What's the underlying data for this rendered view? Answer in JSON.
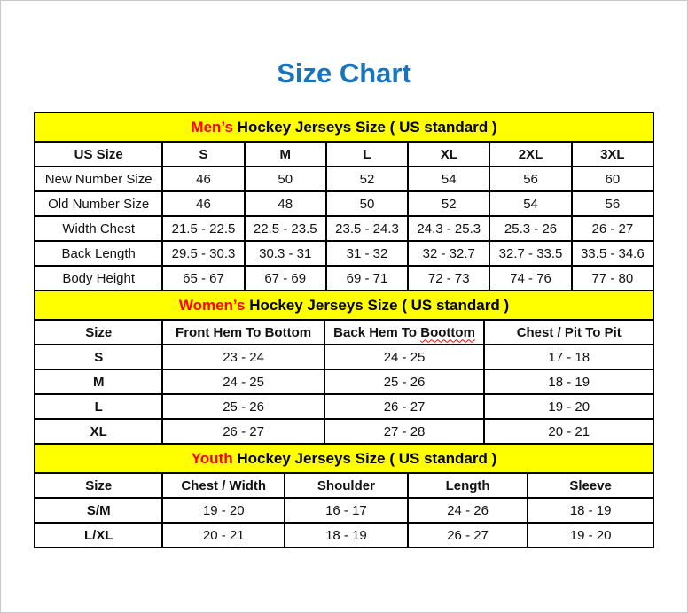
{
  "page": {
    "title": "Size Chart",
    "title_color": "#1874be",
    "band_color": "#ffff00",
    "highlight_color": "#ff0000"
  },
  "tables": [
    {
      "id": "mens",
      "header": {
        "highlight": "Men’s",
        "rest": " Hockey Jerseys Size ( US standard )"
      },
      "columns": [
        "US Size",
        "S",
        "M",
        "L",
        "XL",
        "2XL",
        "3XL"
      ],
      "rows": [
        {
          "label": "New Number Size",
          "values": [
            "46",
            "50",
            "52",
            "54",
            "56",
            "60"
          ]
        },
        {
          "label": "Old Number Size",
          "values": [
            "46",
            "48",
            "50",
            "52",
            "54",
            "56"
          ]
        },
        {
          "label": "Width Chest",
          "values": [
            "21.5 - 22.5",
            "22.5 - 23.5",
            "23.5 - 24.3",
            "24.3 - 25.3",
            "25.3 - 26",
            "26 - 27"
          ]
        },
        {
          "label": "Back Length",
          "values": [
            "29.5 - 30.3",
            "30.3 - 31",
            "31 - 32",
            "32 - 32.7",
            "32.7 - 33.5",
            "33.5 - 34.6"
          ]
        },
        {
          "label": "Body Height",
          "values": [
            "65 - 67",
            "67 - 69",
            "69 - 71",
            "72 - 73",
            "74 - 76",
            "77 - 80"
          ]
        }
      ]
    },
    {
      "id": "womens",
      "header": {
        "highlight": "Women’s",
        "rest": " Hockey Jerseys Size ( US standard )"
      },
      "columns": [
        "Size",
        "Front Hem To Bottom",
        {
          "prefix": "Back Hem To ",
          "misspelled": "Boottom"
        },
        "Chest / Pit To Pit"
      ],
      "rows": [
        {
          "label": "S",
          "values": [
            "23 - 24",
            "24 - 25",
            "17 - 18"
          ]
        },
        {
          "label": "M",
          "values": [
            "24 - 25",
            "25 - 26",
            "18 - 19"
          ]
        },
        {
          "label": "L",
          "values": [
            "25 - 26",
            "26 - 27",
            "19 - 20"
          ]
        },
        {
          "label": "XL",
          "values": [
            "26 - 27",
            "27 - 28",
            "20 - 21"
          ]
        }
      ]
    },
    {
      "id": "youth",
      "header": {
        "highlight": "Youth",
        "rest": " Hockey Jerseys Size ( US standard )"
      },
      "columns": [
        "Size",
        "Chest / Width",
        "Shoulder",
        "Length",
        "Sleeve"
      ],
      "rows": [
        {
          "label": "S/M",
          "values": [
            "19 - 20",
            "16 - 17",
            "24 - 26",
            "18 - 19"
          ]
        },
        {
          "label": "L/XL",
          "values": [
            "20 - 21",
            "18 - 19",
            "26 - 27",
            "19 - 20"
          ]
        }
      ]
    }
  ]
}
